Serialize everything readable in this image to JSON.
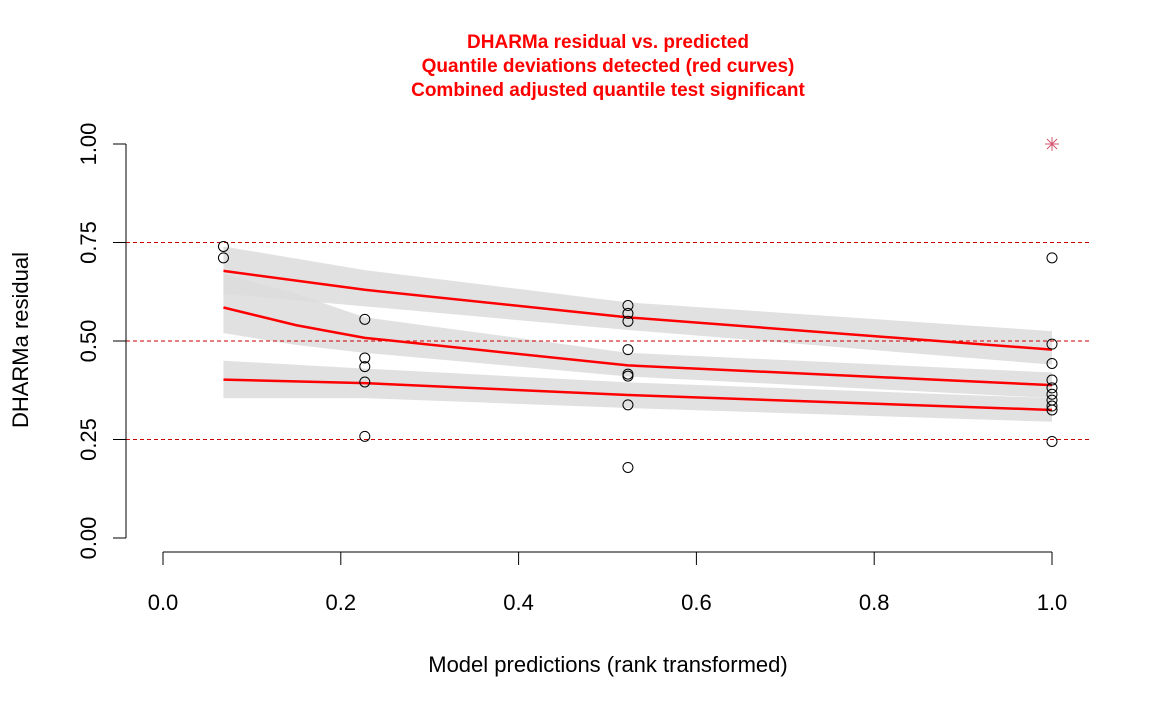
{
  "chart_data": {
    "type": "scatter",
    "title_lines": [
      "DHARMa residual vs. predicted",
      "Quantile deviations detected (red curves)",
      "Combined adjusted quantile test significant"
    ],
    "xlabel": "Model predictions (rank transformed)",
    "ylabel": "DHARMa residual",
    "xlim": [
      0.0,
      1.0
    ],
    "ylim": [
      0.0,
      1.0
    ],
    "x_ticks": [
      0.0,
      0.2,
      0.4,
      0.6,
      0.8,
      1.0
    ],
    "x_tick_labels": [
      "0.0",
      "0.2",
      "0.4",
      "0.6",
      "0.8",
      "1.0"
    ],
    "y_ticks": [
      0.0,
      0.25,
      0.5,
      0.75,
      1.0
    ],
    "y_tick_labels": [
      "0.00",
      "0.25",
      "0.50",
      "0.75",
      "1.00"
    ],
    "reference_lines": [
      0.25,
      0.5,
      0.75
    ],
    "points": [
      {
        "x": 0.068,
        "y": 0.74
      },
      {
        "x": 0.068,
        "y": 0.711
      },
      {
        "x": 0.227,
        "y": 0.555
      },
      {
        "x": 0.227,
        "y": 0.457
      },
      {
        "x": 0.227,
        "y": 0.435
      },
      {
        "x": 0.227,
        "y": 0.396
      },
      {
        "x": 0.227,
        "y": 0.258
      },
      {
        "x": 0.523,
        "y": 0.59
      },
      {
        "x": 0.523,
        "y": 0.57
      },
      {
        "x": 0.523,
        "y": 0.55
      },
      {
        "x": 0.523,
        "y": 0.478
      },
      {
        "x": 0.523,
        "y": 0.416
      },
      {
        "x": 0.523,
        "y": 0.411
      },
      {
        "x": 0.523,
        "y": 0.338
      },
      {
        "x": 0.523,
        "y": 0.179
      },
      {
        "x": 1.0,
        "y": 0.711
      },
      {
        "x": 1.0,
        "y": 0.492
      },
      {
        "x": 1.0,
        "y": 0.443
      },
      {
        "x": 1.0,
        "y": 0.401
      },
      {
        "x": 1.0,
        "y": 0.381
      },
      {
        "x": 1.0,
        "y": 0.365
      },
      {
        "x": 1.0,
        "y": 0.35
      },
      {
        "x": 1.0,
        "y": 0.335
      },
      {
        "x": 1.0,
        "y": 0.325
      },
      {
        "x": 1.0,
        "y": 0.245
      }
    ],
    "outliers": [
      {
        "x": 1.0,
        "y": 1.0
      }
    ],
    "quantile_curves": [
      {
        "name": "q0.75",
        "x": [
          0.068,
          0.227,
          0.523,
          1.0
        ],
        "y": [
          0.678,
          0.63,
          0.56,
          0.478
        ],
        "band_upper": [
          0.74,
          0.68,
          0.598,
          0.525
        ],
        "band_lower": [
          0.62,
          0.588,
          0.528,
          0.44
        ]
      },
      {
        "name": "q0.50",
        "x": [
          0.068,
          0.15,
          0.227,
          0.523,
          1.0
        ],
        "y": [
          0.585,
          0.54,
          0.508,
          0.438,
          0.388
        ],
        "band_upper": [
          0.67,
          0.62,
          0.56,
          0.47,
          0.42
        ],
        "band_lower": [
          0.52,
          0.49,
          0.47,
          0.41,
          0.355
        ]
      },
      {
        "name": "q0.25",
        "x": [
          0.068,
          0.227,
          0.523,
          1.0
        ],
        "y": [
          0.402,
          0.393,
          0.363,
          0.325
        ],
        "band_upper": [
          0.45,
          0.43,
          0.395,
          0.355
        ],
        "band_lower": [
          0.355,
          0.355,
          0.33,
          0.295
        ]
      }
    ],
    "colors": {
      "curve": "#ff0000",
      "band": "#dcdcdc",
      "band_overlap": "#c3c3c3",
      "reference": "#cc0000",
      "outlier": "#d0556b",
      "point": "#000000",
      "title": "#ff0000"
    }
  }
}
